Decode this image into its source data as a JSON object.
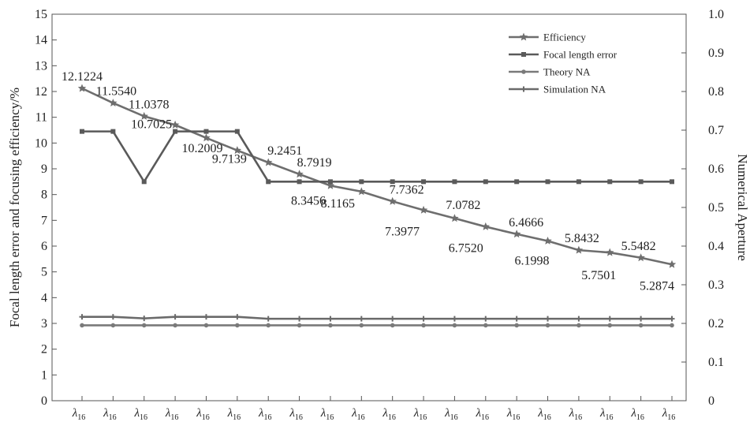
{
  "chart_data": {
    "type": "line",
    "title": "",
    "ylabel_left": "Focal length error and focusing efficiency/%",
    "ylabel_right": "Numerical Aperture",
    "ylim_left": [
      0,
      15
    ],
    "ylim_right": [
      0,
      1.0
    ],
    "left_ticks": [
      "0",
      "1",
      "2",
      "3",
      "4",
      "5",
      "6",
      "7",
      "8",
      "9",
      "10",
      "11",
      "12",
      "13",
      "14",
      "15"
    ],
    "right_ticks": [
      "0",
      "0.1",
      "0.2",
      "0.3",
      "0.4",
      "0.5",
      "0.6",
      "0.7",
      "0.8",
      "0.9",
      "1.0"
    ],
    "category_main": "λ",
    "category_sub": "16",
    "categories": [
      "λ16",
      "λ16",
      "λ16",
      "λ16",
      "λ16",
      "λ16",
      "λ16",
      "λ16",
      "λ16",
      "λ16",
      "λ16",
      "λ16",
      "λ16",
      "λ16",
      "λ16",
      "λ16",
      "λ16",
      "λ16",
      "λ16",
      "λ16"
    ],
    "legend_position": "top-right",
    "grid": false,
    "series": [
      {
        "name": "Efficiency",
        "axis": "left",
        "marker": "star",
        "color": "#6e6e6e",
        "values": [
          12.1224,
          11.554,
          11.0378,
          10.7025,
          10.2009,
          9.7139,
          9.2451,
          8.7919,
          8.3456,
          8.1165,
          7.7362,
          7.3977,
          7.0782,
          6.752,
          6.4666,
          6.1998,
          5.8432,
          5.7501,
          5.5482,
          5.2874
        ],
        "labels": [
          "12.1224",
          "11.5540",
          "11.0378",
          "10.7025",
          "10.2009",
          "9.7139",
          "9.2451",
          "8.7919",
          "8.3456",
          "8.1165",
          "7.7362",
          "7.3977",
          "7.0782",
          "6.7520",
          "6.4666",
          "6.1998",
          "5.8432",
          "5.7501",
          "5.5482",
          "5.2874"
        ]
      },
      {
        "name": "Focal length error",
        "axis": "left",
        "marker": "square",
        "color": "#5a5a5a",
        "values": [
          10.45,
          10.45,
          8.5,
          10.45,
          10.45,
          10.45,
          8.5,
          8.5,
          8.5,
          8.5,
          8.5,
          8.5,
          8.5,
          8.5,
          8.5,
          8.5,
          8.5,
          8.5,
          8.5,
          8.5
        ]
      },
      {
        "name": "Theory NA",
        "axis": "right",
        "marker": "circle",
        "color": "#7a7a7a",
        "values": [
          0.195,
          0.195,
          0.195,
          0.195,
          0.195,
          0.195,
          0.195,
          0.195,
          0.195,
          0.195,
          0.195,
          0.195,
          0.195,
          0.195,
          0.195,
          0.195,
          0.195,
          0.195,
          0.195,
          0.195
        ]
      },
      {
        "name": "Simulation NA",
        "axis": "right",
        "marker": "plus",
        "color": "#6a6a6a",
        "values": [
          0.217,
          0.217,
          0.213,
          0.217,
          0.217,
          0.217,
          0.212,
          0.212,
          0.212,
          0.212,
          0.212,
          0.212,
          0.212,
          0.212,
          0.212,
          0.212,
          0.212,
          0.212,
          0.212,
          0.212
        ]
      }
    ]
  }
}
